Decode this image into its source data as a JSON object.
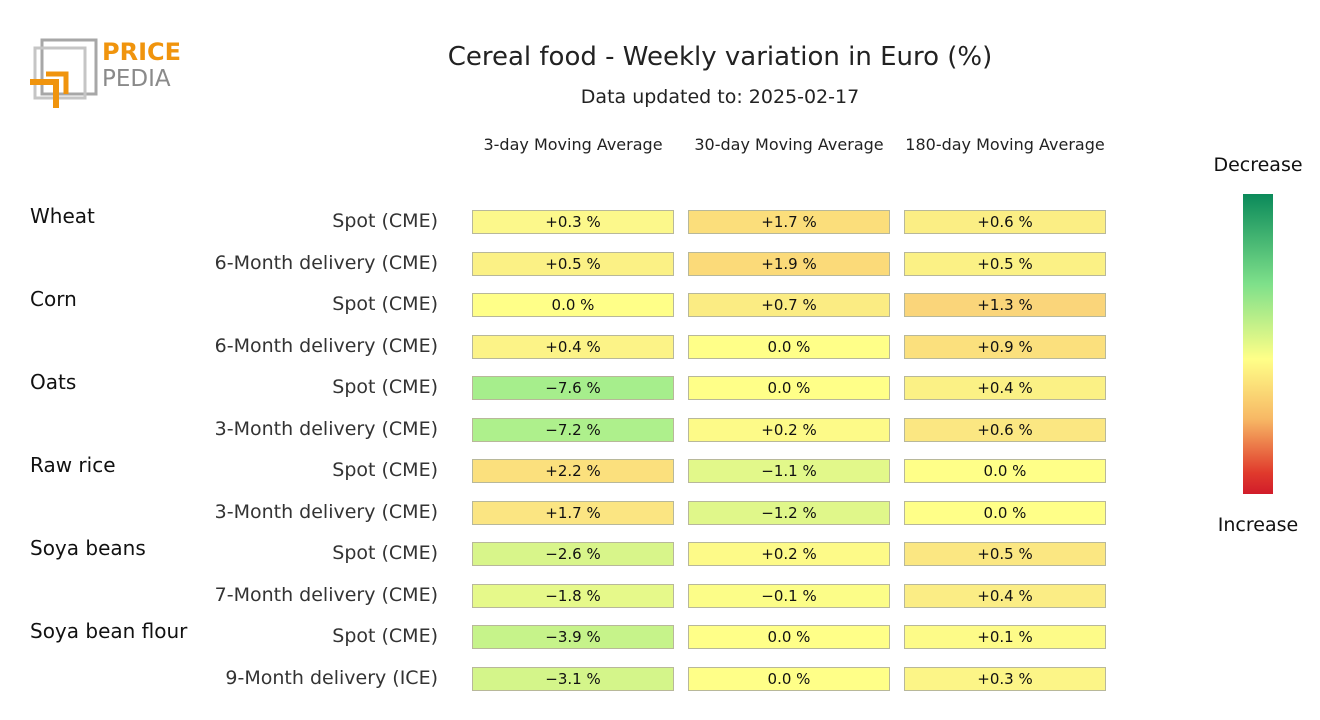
{
  "logo": {
    "word1": "PRICE",
    "word2": "PEDIA",
    "colors": {
      "orange": "#F0940D",
      "gray": "#9a9a9a"
    }
  },
  "title": "Cereal food - Weekly variation in Euro (%)",
  "subtitle": "Data updated to: 2025-02-17",
  "legend": {
    "top": "Decrease",
    "bottom": "Increase"
  },
  "chart_data": {
    "type": "table",
    "columns": [
      "3-day Moving Average",
      "30-day Moving Average",
      "180-day Moving Average"
    ],
    "groups": [
      {
        "name": "Wheat",
        "rows": [
          {
            "label": "Spot (CME)",
            "values": [
              "+0.3 %",
              "+1.7 %",
              "+0.6 %"
            ],
            "colors": [
              "#fcf88b",
              "#fbde7b",
              "#fbee84"
            ]
          },
          {
            "label": "6-Month delivery (CME)",
            "values": [
              "+0.5 %",
              "+1.9 %",
              "+0.5 %"
            ],
            "colors": [
              "#fbf185",
              "#fbda79",
              "#fbf185"
            ]
          }
        ]
      },
      {
        "name": "Corn",
        "rows": [
          {
            "label": "Spot (CME)",
            "values": [
              "0.0 %",
              "+0.7 %",
              "+1.3 %"
            ],
            "colors": [
              "#ffff88",
              "#fbec83",
              "#fad57a"
            ]
          },
          {
            "label": "6-Month delivery (CME)",
            "values": [
              "+0.4 %",
              "0.0 %",
              "+0.9 %"
            ],
            "colors": [
              "#fcf387",
              "#ffff88",
              "#fbe07d"
            ]
          }
        ]
      },
      {
        "name": "Oats",
        "rows": [
          {
            "label": "Spot (CME)",
            "values": [
              "−7.6 %",
              "0.0 %",
              "+0.4 %"
            ],
            "colors": [
              "#a6ee8c",
              "#ffff88",
              "#fbf185"
            ]
          },
          {
            "label": "3-Month delivery (CME)",
            "values": [
              "−7.2 %",
              "+0.2 %",
              "+0.6 %"
            ],
            "colors": [
              "#aef08c",
              "#fdfa88",
              "#fbe782"
            ]
          }
        ]
      },
      {
        "name": "Raw rice",
        "rows": [
          {
            "label": "Spot (CME)",
            "values": [
              "+2.2 %",
              "−1.1 %",
              "0.0 %"
            ],
            "colors": [
              "#fbe07d",
              "#e2f88a",
              "#ffff88"
            ]
          },
          {
            "label": "3-Month delivery (CME)",
            "values": [
              "+1.7 %",
              "−1.2 %",
              "0.0 %"
            ],
            "colors": [
              "#fbe582",
              "#e0f78a",
              "#ffff88"
            ]
          }
        ]
      },
      {
        "name": "Soya beans",
        "rows": [
          {
            "label": "Spot (CME)",
            "values": [
              "−2.6 %",
              "+0.2 %",
              "+0.5 %"
            ],
            "colors": [
              "#d8f58a",
              "#fdfa88",
              "#fbe782"
            ]
          },
          {
            "label": "7-Month delivery (CME)",
            "values": [
              "−1.8 %",
              "−0.1 %",
              "+0.4 %"
            ],
            "colors": [
              "#e6f98a",
              "#fcfd88",
              "#fbed85"
            ]
          }
        ]
      },
      {
        "name": "Soya bean flour",
        "rows": [
          {
            "label": "Spot (CME)",
            "values": [
              "−3.9 %",
              "0.0 %",
              "+0.1 %"
            ],
            "colors": [
              "#c6f38a",
              "#ffff88",
              "#fdfb88"
            ]
          },
          {
            "label": "9-Month delivery (ICE)",
            "values": [
              "−3.1 %",
              "0.0 %",
              "+0.3 %"
            ],
            "colors": [
              "#d4f58a",
              "#ffff88",
              "#fcf587"
            ]
          }
        ]
      }
    ]
  }
}
